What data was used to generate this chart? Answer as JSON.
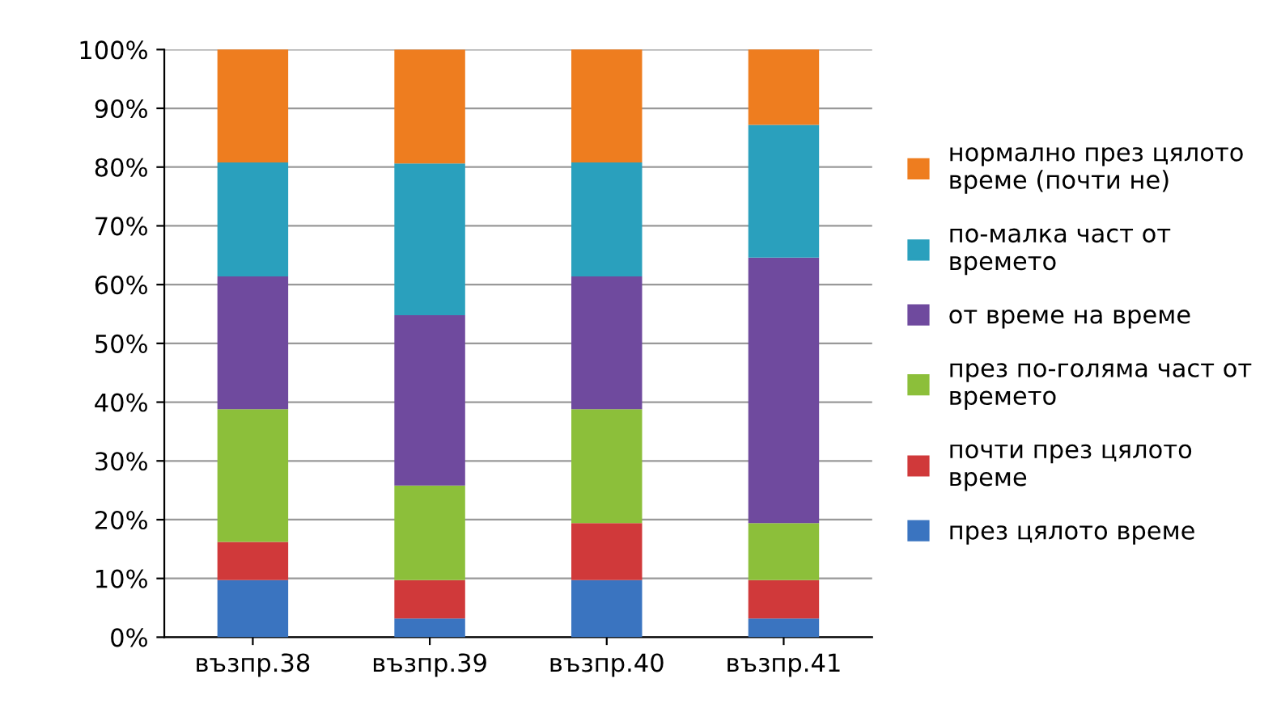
{
  "chart_data": {
    "type": "bar",
    "stacked": true,
    "categories": [
      "възпр.38",
      "възпр.39",
      "възпр.40",
      "възпр.41"
    ],
    "series": [
      {
        "name": "през цялото време",
        "color": "#3a74c0",
        "values": [
          9.7,
          3.2,
          9.7,
          3.2
        ]
      },
      {
        "name": "почти през цялото време",
        "color": "#d0393a",
        "values": [
          6.5,
          6.5,
          9.7,
          6.5
        ]
      },
      {
        "name": "през по-голяма част от времето",
        "color": "#8cbf3a",
        "values": [
          22.6,
          16.1,
          19.4,
          9.7
        ]
      },
      {
        "name": "от време на време",
        "color": "#6f4a9e",
        "values": [
          22.6,
          29.0,
          22.6,
          45.2
        ]
      },
      {
        "name": "по-малка част от времето",
        "color": "#2aa0bd",
        "values": [
          19.4,
          25.8,
          19.4,
          22.6
        ]
      },
      {
        "name": "нормално през цялото време (почти не)",
        "color": "#ee7d1f",
        "values": [
          19.4,
          19.4,
          19.4,
          12.9
        ]
      }
    ],
    "ylim": [
      0,
      100
    ],
    "yticks": [
      {
        "value": 0,
        "label": "0%"
      },
      {
        "value": 10,
        "label": "10%"
      },
      {
        "value": 20,
        "label": "20%"
      },
      {
        "value": 30,
        "label": "30%"
      },
      {
        "value": 40,
        "label": "40%"
      },
      {
        "value": 50,
        "label": "50%"
      },
      {
        "value": 60,
        "label": "60%"
      },
      {
        "value": 70,
        "label": "70%"
      },
      {
        "value": 80,
        "label": "80%"
      },
      {
        "value": 90,
        "label": "90%"
      },
      {
        "value": 100,
        "label": "100%"
      }
    ],
    "grid": "y",
    "legend": "right"
  }
}
